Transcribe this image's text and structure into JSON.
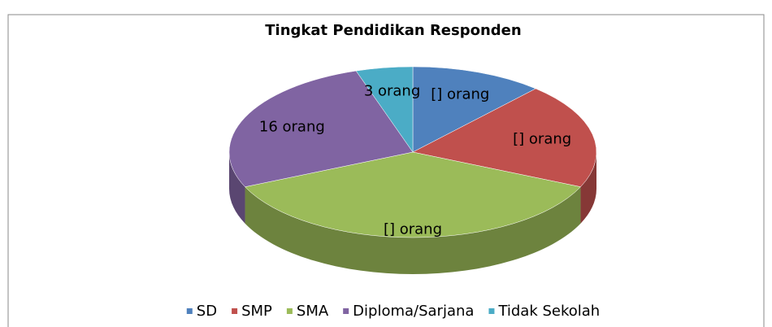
{
  "chart_data": {
    "type": "pie",
    "title": "Tingkat Pendidikan Responden",
    "categories": [
      "SD",
      "SMP",
      "SMA",
      "Diploma/Sarjana",
      "Tidak Sekolah"
    ],
    "values": [
      7,
      12,
      22,
      16,
      3
    ],
    "value_labels": [
      "[] orang",
      "[] orang",
      "[] orang",
      "16 orang",
      "3 orang"
    ],
    "colors": [
      "#4f81bd",
      "#c0504d",
      "#9bbb59",
      "#8064a2",
      "#4bacc6"
    ],
    "legend": "bottom"
  }
}
